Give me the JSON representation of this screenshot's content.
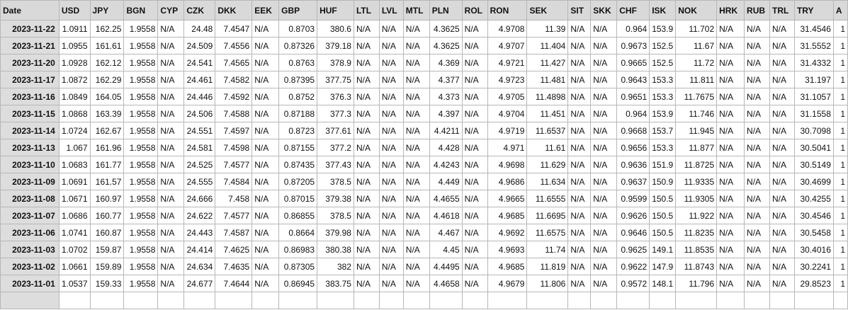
{
  "table": {
    "columns": [
      "Date",
      "USD",
      "JPY",
      "BGN",
      "CYP",
      "CZK",
      "DKK",
      "EEK",
      "GBP",
      "HUF",
      "LTL",
      "LVL",
      "MTL",
      "PLN",
      "ROL",
      "RON",
      "SEK",
      "SIT",
      "SKK",
      "CHF",
      "ISK",
      "NOK",
      "HRK",
      "RUB",
      "TRL",
      "TRY",
      "A"
    ],
    "rows": [
      [
        "2023-11-22",
        "1.0911",
        "162.25",
        "1.9558",
        "N/A",
        "24.48",
        "7.4547",
        "N/A",
        "0.8703",
        "380.6",
        "N/A",
        "N/A",
        "N/A",
        "4.3625",
        "N/A",
        "4.9708",
        "11.39",
        "N/A",
        "N/A",
        "0.964",
        "153.9",
        "11.702",
        "N/A",
        "N/A",
        "N/A",
        "31.4546",
        "1"
      ],
      [
        "2023-11-21",
        "1.0955",
        "161.61",
        "1.9558",
        "N/A",
        "24.509",
        "7.4556",
        "N/A",
        "0.87326",
        "379.18",
        "N/A",
        "N/A",
        "N/A",
        "4.3625",
        "N/A",
        "4.9707",
        "11.404",
        "N/A",
        "N/A",
        "0.9673",
        "152.5",
        "11.67",
        "N/A",
        "N/A",
        "N/A",
        "31.5552",
        "1"
      ],
      [
        "2023-11-20",
        "1.0928",
        "162.12",
        "1.9558",
        "N/A",
        "24.541",
        "7.4565",
        "N/A",
        "0.8763",
        "378.9",
        "N/A",
        "N/A",
        "N/A",
        "4.369",
        "N/A",
        "4.9721",
        "11.427",
        "N/A",
        "N/A",
        "0.9665",
        "152.5",
        "11.72",
        "N/A",
        "N/A",
        "N/A",
        "31.4332",
        "1"
      ],
      [
        "2023-11-17",
        "1.0872",
        "162.29",
        "1.9558",
        "N/A",
        "24.461",
        "7.4582",
        "N/A",
        "0.87395",
        "377.75",
        "N/A",
        "N/A",
        "N/A",
        "4.377",
        "N/A",
        "4.9723",
        "11.481",
        "N/A",
        "N/A",
        "0.9643",
        "153.3",
        "11.811",
        "N/A",
        "N/A",
        "N/A",
        "31.197",
        "1"
      ],
      [
        "2023-11-16",
        "1.0849",
        "164.05",
        "1.9558",
        "N/A",
        "24.446",
        "7.4592",
        "N/A",
        "0.8752",
        "376.3",
        "N/A",
        "N/A",
        "N/A",
        "4.373",
        "N/A",
        "4.9705",
        "11.4898",
        "N/A",
        "N/A",
        "0.9651",
        "153.3",
        "11.7675",
        "N/A",
        "N/A",
        "N/A",
        "31.1057",
        "1"
      ],
      [
        "2023-11-15",
        "1.0868",
        "163.39",
        "1.9558",
        "N/A",
        "24.506",
        "7.4588",
        "N/A",
        "0.87188",
        "377.3",
        "N/A",
        "N/A",
        "N/A",
        "4.397",
        "N/A",
        "4.9704",
        "11.451",
        "N/A",
        "N/A",
        "0.964",
        "153.9",
        "11.746",
        "N/A",
        "N/A",
        "N/A",
        "31.1558",
        "1"
      ],
      [
        "2023-11-14",
        "1.0724",
        "162.67",
        "1.9558",
        "N/A",
        "24.551",
        "7.4597",
        "N/A",
        "0.8723",
        "377.61",
        "N/A",
        "N/A",
        "N/A",
        "4.4211",
        "N/A",
        "4.9719",
        "11.6537",
        "N/A",
        "N/A",
        "0.9668",
        "153.7",
        "11.945",
        "N/A",
        "N/A",
        "N/A",
        "30.7098",
        "1"
      ],
      [
        "2023-11-13",
        "1.067",
        "161.96",
        "1.9558",
        "N/A",
        "24.581",
        "7.4598",
        "N/A",
        "0.87155",
        "377.2",
        "N/A",
        "N/A",
        "N/A",
        "4.428",
        "N/A",
        "4.971",
        "11.61",
        "N/A",
        "N/A",
        "0.9656",
        "153.3",
        "11.877",
        "N/A",
        "N/A",
        "N/A",
        "30.5041",
        "1"
      ],
      [
        "2023-11-10",
        "1.0683",
        "161.77",
        "1.9558",
        "N/A",
        "24.525",
        "7.4577",
        "N/A",
        "0.87435",
        "377.43",
        "N/A",
        "N/A",
        "N/A",
        "4.4243",
        "N/A",
        "4.9698",
        "11.629",
        "N/A",
        "N/A",
        "0.9636",
        "151.9",
        "11.8725",
        "N/A",
        "N/A",
        "N/A",
        "30.5149",
        "1"
      ],
      [
        "2023-11-09",
        "1.0691",
        "161.57",
        "1.9558",
        "N/A",
        "24.555",
        "7.4584",
        "N/A",
        "0.87205",
        "378.5",
        "N/A",
        "N/A",
        "N/A",
        "4.449",
        "N/A",
        "4.9686",
        "11.634",
        "N/A",
        "N/A",
        "0.9637",
        "150.9",
        "11.9335",
        "N/A",
        "N/A",
        "N/A",
        "30.4699",
        "1"
      ],
      [
        "2023-11-08",
        "1.0671",
        "160.97",
        "1.9558",
        "N/A",
        "24.666",
        "7.458",
        "N/A",
        "0.87015",
        "379.38",
        "N/A",
        "N/A",
        "N/A",
        "4.4655",
        "N/A",
        "4.9665",
        "11.6555",
        "N/A",
        "N/A",
        "0.9599",
        "150.5",
        "11.9305",
        "N/A",
        "N/A",
        "N/A",
        "30.4255",
        "1"
      ],
      [
        "2023-11-07",
        "1.0686",
        "160.77",
        "1.9558",
        "N/A",
        "24.622",
        "7.4577",
        "N/A",
        "0.86855",
        "378.5",
        "N/A",
        "N/A",
        "N/A",
        "4.4618",
        "N/A",
        "4.9685",
        "11.6695",
        "N/A",
        "N/A",
        "0.9626",
        "150.5",
        "11.922",
        "N/A",
        "N/A",
        "N/A",
        "30.4546",
        "1"
      ],
      [
        "2023-11-06",
        "1.0741",
        "160.87",
        "1.9558",
        "N/A",
        "24.443",
        "7.4587",
        "N/A",
        "0.8664",
        "379.98",
        "N/A",
        "N/A",
        "N/A",
        "4.467",
        "N/A",
        "4.9692",
        "11.6575",
        "N/A",
        "N/A",
        "0.9646",
        "150.5",
        "11.8235",
        "N/A",
        "N/A",
        "N/A",
        "30.5458",
        "1"
      ],
      [
        "2023-11-03",
        "1.0702",
        "159.87",
        "1.9558",
        "N/A",
        "24.414",
        "7.4625",
        "N/A",
        "0.86983",
        "380.38",
        "N/A",
        "N/A",
        "N/A",
        "4.45",
        "N/A",
        "4.9693",
        "11.74",
        "N/A",
        "N/A",
        "0.9625",
        "149.1",
        "11.8535",
        "N/A",
        "N/A",
        "N/A",
        "30.4016",
        "1"
      ],
      [
        "2023-11-02",
        "1.0661",
        "159.89",
        "1.9558",
        "N/A",
        "24.634",
        "7.4635",
        "N/A",
        "0.87305",
        "382",
        "N/A",
        "N/A",
        "N/A",
        "4.4495",
        "N/A",
        "4.9685",
        "11.819",
        "N/A",
        "N/A",
        "0.9622",
        "147.9",
        "11.8743",
        "N/A",
        "N/A",
        "N/A",
        "30.2241",
        "1"
      ],
      [
        "2023-11-01",
        "1.0537",
        "159.33",
        "1.9558",
        "N/A",
        "24.677",
        "7.4644",
        "N/A",
        "0.86945",
        "383.75",
        "N/A",
        "N/A",
        "N/A",
        "4.4658",
        "N/A",
        "4.9679",
        "11.806",
        "N/A",
        "N/A",
        "0.9572",
        "148.1",
        "11.796",
        "N/A",
        "N/A",
        "N/A",
        "29.8523",
        "1"
      ],
      [
        "",
        "",
        "",
        "",
        "",
        "",
        "",
        "",
        "",
        "",
        "",
        "",
        "",
        "",
        "",
        "",
        "",
        "",
        "",
        "",
        "",
        "",
        "",
        "",
        "",
        "",
        ""
      ]
    ]
  }
}
